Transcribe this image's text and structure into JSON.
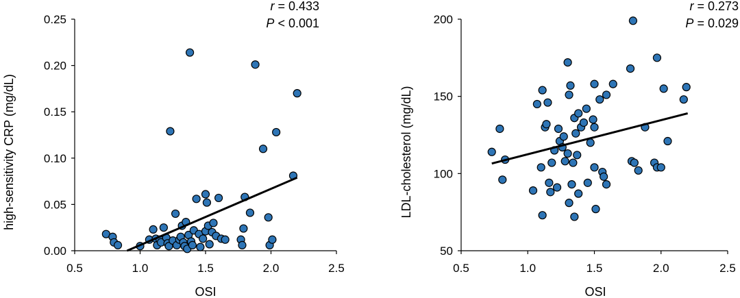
{
  "chart_data": [
    {
      "type": "scatter",
      "xlabel": "OSI",
      "ylabel": "high-sensitivity CRP (mg/dL)",
      "xlim": [
        0.5,
        2.5
      ],
      "ylim": [
        0,
        0.25
      ],
      "xticks": [
        "0.5",
        "1.0",
        "1.5",
        "2.0",
        "2.5"
      ],
      "yticks": [
        "0.00",
        "0.05",
        "0.10",
        "0.15",
        "0.20",
        "0.25"
      ],
      "stats": {
        "r_label": "r",
        "r_text": " = 0.433",
        "p_label": "P",
        "p_text": " < 0.001"
      },
      "trendline": [
        [
          0.9,
          0.0
        ],
        [
          2.2,
          0.079
        ]
      ],
      "marker_color": "#2e75b6",
      "points": [
        [
          0.74,
          0.018
        ],
        [
          0.79,
          0.015
        ],
        [
          0.8,
          0.009
        ],
        [
          0.83,
          0.006
        ],
        [
          1.0,
          0.005
        ],
        [
          1.07,
          0.012
        ],
        [
          1.1,
          0.023
        ],
        [
          1.12,
          0.013
        ],
        [
          1.13,
          0.006
        ],
        [
          1.15,
          0.012
        ],
        [
          1.16,
          0.009
        ],
        [
          1.18,
          0.025
        ],
        [
          1.2,
          0.014
        ],
        [
          1.21,
          0.008
        ],
        [
          1.22,
          0.005
        ],
        [
          1.23,
          0.129
        ],
        [
          1.25,
          0.011
        ],
        [
          1.27,
          0.04
        ],
        [
          1.28,
          0.006
        ],
        [
          1.3,
          0.012
        ],
        [
          1.31,
          0.015
        ],
        [
          1.32,
          0.027
        ],
        [
          1.33,
          0.009
        ],
        [
          1.34,
          0.005
        ],
        [
          1.35,
          0.031
        ],
        [
          1.36,
          0.002
        ],
        [
          1.37,
          0.017
        ],
        [
          1.38,
          0.214
        ],
        [
          1.39,
          0.01
        ],
        [
          1.4,
          0.006
        ],
        [
          1.41,
          0.022
        ],
        [
          1.43,
          0.056
        ],
        [
          1.45,
          0.018
        ],
        [
          1.46,
          0.004
        ],
        [
          1.48,
          0.013
        ],
        [
          1.5,
          0.061
        ],
        [
          1.5,
          0.021
        ],
        [
          1.51,
          0.052
        ],
        [
          1.52,
          0.027
        ],
        [
          1.53,
          0.007
        ],
        [
          1.55,
          0.02
        ],
        [
          1.56,
          0.03
        ],
        [
          1.58,
          0.016
        ],
        [
          1.6,
          0.057
        ],
        [
          1.62,
          0.013
        ],
        [
          1.65,
          0.012
        ],
        [
          1.77,
          0.012
        ],
        [
          1.78,
          0.006
        ],
        [
          1.79,
          0.024
        ],
        [
          1.8,
          0.058
        ],
        [
          1.84,
          0.041
        ],
        [
          1.88,
          0.201
        ],
        [
          1.94,
          0.11
        ],
        [
          1.98,
          0.036
        ],
        [
          1.99,
          0.006
        ],
        [
          2.01,
          0.012
        ],
        [
          2.04,
          0.128
        ],
        [
          2.17,
          0.081
        ],
        [
          2.2,
          0.17
        ]
      ]
    },
    {
      "type": "scatter",
      "xlabel": "OSI",
      "ylabel": "LDL-cholesterol (mg/dL)",
      "xlim": [
        0.5,
        2.5
      ],
      "ylim": [
        50,
        200
      ],
      "xticks": [
        "0.5",
        "1.0",
        "1.5",
        "2.0",
        "2.5"
      ],
      "yticks": [
        "50",
        "100",
        "150",
        "200"
      ],
      "stats": {
        "r_label": "r",
        "r_text": " = 0.273",
        "p_label": "P",
        "p_text": " = 0.029"
      },
      "trendline": [
        [
          0.73,
          106.5
        ],
        [
          2.2,
          139
        ]
      ],
      "marker_color": "#2e75b6",
      "points": [
        [
          0.73,
          114
        ],
        [
          0.79,
          129
        ],
        [
          0.81,
          96
        ],
        [
          0.83,
          109
        ],
        [
          1.04,
          89
        ],
        [
          1.07,
          145
        ],
        [
          1.1,
          104
        ],
        [
          1.11,
          154
        ],
        [
          1.11,
          73
        ],
        [
          1.13,
          130
        ],
        [
          1.14,
          132
        ],
        [
          1.15,
          146
        ],
        [
          1.16,
          94
        ],
        [
          1.17,
          88
        ],
        [
          1.18,
          107
        ],
        [
          1.2,
          115
        ],
        [
          1.22,
          91
        ],
        [
          1.23,
          129
        ],
        [
          1.24,
          121
        ],
        [
          1.26,
          117
        ],
        [
          1.27,
          124
        ],
        [
          1.28,
          108
        ],
        [
          1.3,
          172
        ],
        [
          1.3,
          113
        ],
        [
          1.31,
          151
        ],
        [
          1.31,
          81
        ],
        [
          1.32,
          157
        ],
        [
          1.33,
          93
        ],
        [
          1.34,
          107
        ],
        [
          1.35,
          72
        ],
        [
          1.35,
          136
        ],
        [
          1.36,
          126
        ],
        [
          1.37,
          112
        ],
        [
          1.38,
          87
        ],
        [
          1.38,
          139
        ],
        [
          1.4,
          130
        ],
        [
          1.42,
          133
        ],
        [
          1.44,
          142
        ],
        [
          1.45,
          94
        ],
        [
          1.47,
          120
        ],
        [
          1.49,
          135
        ],
        [
          1.5,
          130
        ],
        [
          1.5,
          158
        ],
        [
          1.51,
          77
        ],
        [
          1.5,
          104
        ],
        [
          1.54,
          148
        ],
        [
          1.56,
          101
        ],
        [
          1.57,
          98
        ],
        [
          1.59,
          151
        ],
        [
          1.59,
          93
        ],
        [
          1.64,
          158
        ],
        [
          1.77,
          168
        ],
        [
          1.78,
          108
        ],
        [
          1.79,
          199
        ],
        [
          1.8,
          107
        ],
        [
          1.83,
          102
        ],
        [
          1.88,
          130
        ],
        [
          1.95,
          107
        ],
        [
          1.97,
          104
        ],
        [
          1.97,
          175
        ],
        [
          2.0,
          104
        ],
        [
          2.02,
          155
        ],
        [
          2.05,
          121
        ],
        [
          2.17,
          148
        ],
        [
          2.19,
          156
        ]
      ]
    }
  ]
}
